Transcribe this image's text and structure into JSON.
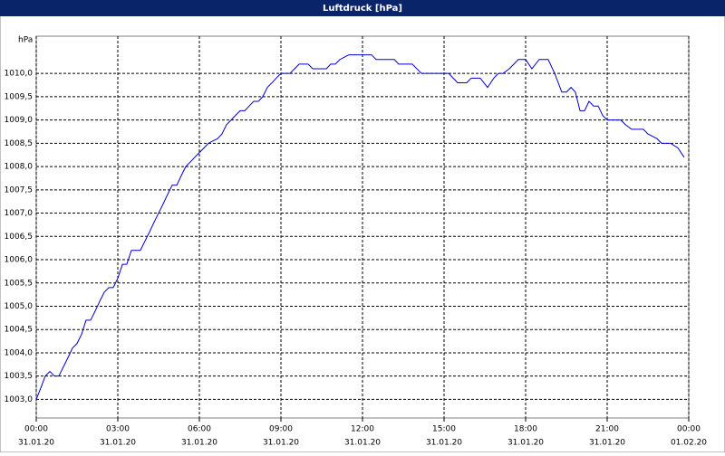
{
  "chart_data": {
    "type": "line",
    "title": "Luftdruck [hPa]",
    "y_label": "hPa",
    "color": "#0000c8",
    "grid": true,
    "xlim": [
      0,
      24
    ],
    "ylim": [
      1002.6,
      1010.8
    ],
    "xticks": [
      {
        "value": 0,
        "label": [
          "00:00",
          "31.01.20"
        ]
      },
      {
        "value": 3,
        "label": [
          "03:00",
          "31.01.20"
        ]
      },
      {
        "value": 6,
        "label": [
          "06:00",
          "31.01.20"
        ]
      },
      {
        "value": 9,
        "label": [
          "09:00",
          "31.01.20"
        ]
      },
      {
        "value": 12,
        "label": [
          "12:00",
          "31.01.20"
        ]
      },
      {
        "value": 15,
        "label": [
          "15:00",
          "31.01.20"
        ]
      },
      {
        "value": 18,
        "label": [
          "18:00",
          "31.01.20"
        ]
      },
      {
        "value": 21,
        "label": [
          "21:00",
          "31.01.20"
        ]
      },
      {
        "value": 24,
        "label": [
          "00:00",
          "01.02.20"
        ]
      }
    ],
    "yticks": [
      {
        "value": 1003,
        "label": "1003,0"
      },
      {
        "value": 1003.5,
        "label": "1003,5"
      },
      {
        "value": 1004,
        "label": "1004,0"
      },
      {
        "value": 1004.5,
        "label": "1004,5"
      },
      {
        "value": 1005,
        "label": "1005,0"
      },
      {
        "value": 1005.5,
        "label": "1005,5"
      },
      {
        "value": 1006,
        "label": "1006,0"
      },
      {
        "value": 1006.5,
        "label": "1006,5"
      },
      {
        "value": 1007,
        "label": "1007,0"
      },
      {
        "value": 1007.5,
        "label": "1007,5"
      },
      {
        "value": 1008,
        "label": "1008,0"
      },
      {
        "value": 1008.5,
        "label": "1008,5"
      },
      {
        "value": 1009,
        "label": "1009,0"
      },
      {
        "value": 1009.5,
        "label": "1009,5"
      },
      {
        "value": 1010,
        "label": "1010,0"
      }
    ],
    "x": [
      0,
      0.17,
      0.33,
      0.5,
      0.67,
      0.83,
      1,
      1.17,
      1.33,
      1.5,
      1.67,
      1.83,
      2,
      2.17,
      2.33,
      2.5,
      2.67,
      2.83,
      3,
      3.17,
      3.33,
      3.5,
      3.67,
      3.83,
      4,
      4.17,
      4.33,
      4.5,
      4.67,
      4.83,
      5,
      5.17,
      5.33,
      5.5,
      5.67,
      5.83,
      6,
      6.17,
      6.33,
      6.67,
      6.83,
      7,
      7.17,
      7.33,
      7.5,
      7.67,
      7.83,
      8,
      8.17,
      8.33,
      8.5,
      8.67,
      8.83,
      9,
      9.33,
      9.5,
      9.67,
      10,
      10.17,
      10.67,
      10.83,
      11,
      11.17,
      11.5,
      12.33,
      12.5,
      13.17,
      13.33,
      13.83,
      14.17,
      15.17,
      15.5,
      15.83,
      16,
      16.33,
      16.6,
      16.83,
      17,
      17.17,
      17.4,
      17.57,
      17.73,
      18,
      18.23,
      18.5,
      18.83,
      19.07,
      19.33,
      19.5,
      19.67,
      19.83,
      20,
      20.17,
      20.33,
      20.5,
      20.67,
      20.83,
      21,
      21.5,
      21.67,
      21.9,
      22.33,
      22.5,
      22.83,
      23,
      23.33,
      23.6,
      23.83
    ],
    "values": [
      1003.0,
      1003.25,
      1003.5,
      1003.6,
      1003.5,
      1003.5,
      1003.7,
      1003.9,
      1004.1,
      1004.2,
      1004.4,
      1004.7,
      1004.7,
      1004.9,
      1005.1,
      1005.3,
      1005.4,
      1005.4,
      1005.6,
      1005.9,
      1005.9,
      1006.2,
      1006.2,
      1006.2,
      1006.4,
      1006.6,
      1006.8,
      1007.0,
      1007.2,
      1007.4,
      1007.6,
      1007.6,
      1007.8,
      1008.0,
      1008.1,
      1008.2,
      1008.3,
      1008.4,
      1008.5,
      1008.6,
      1008.7,
      1008.9,
      1009.0,
      1009.1,
      1009.2,
      1009.2,
      1009.3,
      1009.4,
      1009.4,
      1009.5,
      1009.7,
      1009.8,
      1009.9,
      1010.0,
      1010.0,
      1010.1,
      1010.2,
      1010.2,
      1010.1,
      1010.1,
      1010.2,
      1010.2,
      1010.3,
      1010.4,
      1010.4,
      1010.3,
      1010.3,
      1010.2,
      1010.2,
      1010.0,
      1010.0,
      1009.8,
      1009.8,
      1009.9,
      1009.9,
      1009.7,
      1009.9,
      1010.0,
      1010.0,
      1010.1,
      1010.2,
      1010.3,
      1010.3,
      1010.1,
      1010.3,
      1010.3,
      1010.0,
      1009.6,
      1009.6,
      1009.7,
      1009.6,
      1009.2,
      1009.2,
      1009.4,
      1009.3,
      1009.3,
      1009.1,
      1009.0,
      1009.0,
      1008.9,
      1008.8,
      1008.8,
      1008.7,
      1008.6,
      1008.5,
      1008.5,
      1008.4,
      1008.2
    ]
  }
}
